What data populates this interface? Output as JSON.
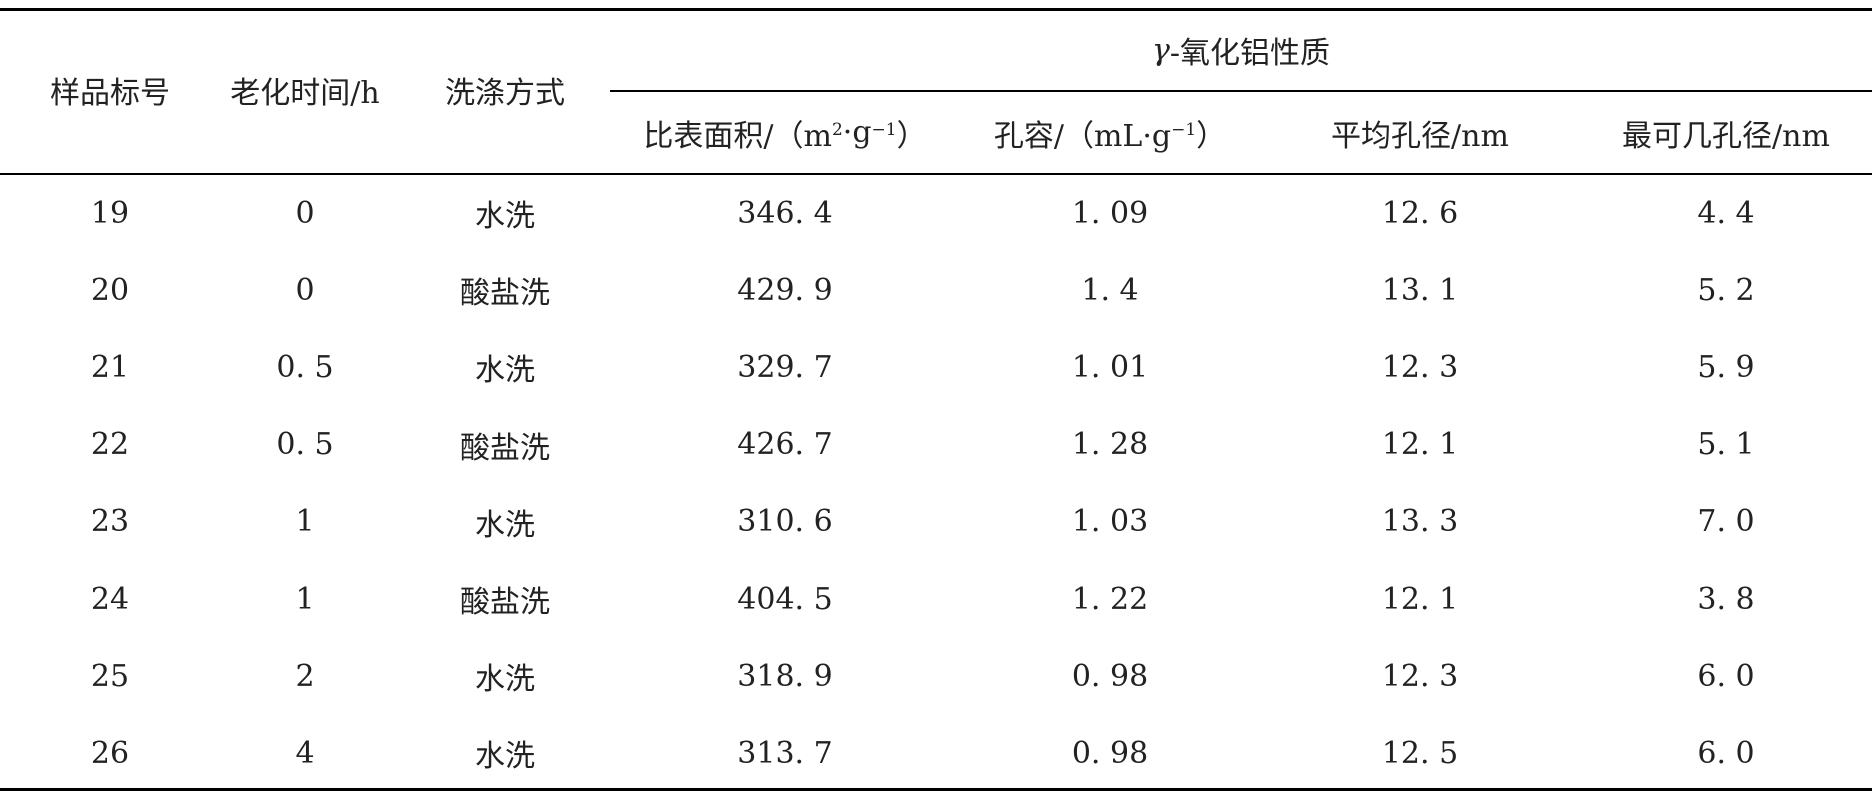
{
  "table": {
    "headers": {
      "sample_id": "样品标号",
      "aging_time": "老化时间/h",
      "washing": "洗涤方式",
      "group_title_symbol": "γ",
      "group_title_text": "-氧化铝性质",
      "surface_area_prefix": "比表面积/（m",
      "surface_area_sup1": "2",
      "surface_area_mid": "·g",
      "surface_area_sup2": "−1",
      "surface_area_suffix": "）",
      "pore_volume_prefix": "孔容/（mL·g",
      "pore_volume_sup": "−1",
      "pore_volume_suffix": "）",
      "avg_pore": "平均孔径/nm",
      "most_probable_pore": "最可几孔径/nm"
    },
    "rows": [
      {
        "sample": "19",
        "aging": "0",
        "washing": "水洗",
        "area": "346. 4",
        "volume": "1. 09",
        "avg": "12. 6",
        "mode": "4. 4"
      },
      {
        "sample": "20",
        "aging": "0",
        "washing": "酸盐洗",
        "area": "429. 9",
        "volume": "1. 4",
        "avg": "13. 1",
        "mode": "5. 2"
      },
      {
        "sample": "21",
        "aging": "0. 5",
        "washing": "水洗",
        "area": "329. 7",
        "volume": "1. 01",
        "avg": "12. 3",
        "mode": "5. 9"
      },
      {
        "sample": "22",
        "aging": "0. 5",
        "washing": "酸盐洗",
        "area": "426. 7",
        "volume": "1. 28",
        "avg": "12. 1",
        "mode": "5. 1"
      },
      {
        "sample": "23",
        "aging": "1",
        "washing": "水洗",
        "area": "310. 6",
        "volume": "1. 03",
        "avg": "13. 3",
        "mode": "7. 0"
      },
      {
        "sample": "24",
        "aging": "1",
        "washing": "酸盐洗",
        "area": "404. 5",
        "volume": "1. 22",
        "avg": "12. 1",
        "mode": "3. 8"
      },
      {
        "sample": "25",
        "aging": "2",
        "washing": "水洗",
        "area": "318. 9",
        "volume": "0. 98",
        "avg": "12. 3",
        "mode": "6. 0"
      },
      {
        "sample": "26",
        "aging": "4",
        "washing": "水洗",
        "area": "313. 7",
        "volume": "0. 98",
        "avg": "12. 5",
        "mode": "6. 0"
      }
    ]
  }
}
